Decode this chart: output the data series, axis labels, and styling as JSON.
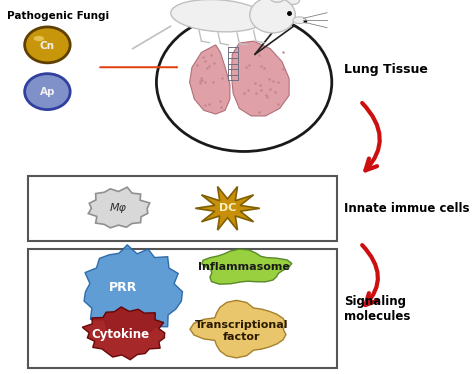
{
  "bg_color": "#ffffff",
  "figsize": [
    4.74,
    3.74
  ],
  "dpi": 100,
  "labels": {
    "pathogenic_fungi": "Pathogenic Fungi",
    "cn": "Cn",
    "ap": "Ap",
    "lung_tissue": "Lung Tissue",
    "innate_cells": "Innate immue cells",
    "macrophage": "Mφ",
    "dc": "DC",
    "signaling": "Signaling\nmolecules",
    "prr": "PRR",
    "inflammasome": "Inflammasome",
    "cytokine": "Cytokine",
    "transcriptional": "Transcriptional\nfactor"
  },
  "colors": {
    "cn_circle": "#c8960a",
    "ap_circle": "#8090c8",
    "ap_border": "#3040a0",
    "arrow_orange": "#e04010",
    "lung_circle_border": "#1a1a1a",
    "box_border": "#555555",
    "macrophage_fill": "#d8d8d8",
    "macrophage_edge": "#909090",
    "dc_fill": "#c8900a",
    "dc_edge": "#806000",
    "prr_fill": "#4a90d0",
    "prr_edge": "#2060a0",
    "inflammasome_fill": "#90cc30",
    "inflammasome_edge": "#508020",
    "cytokine_fill": "#a01515",
    "cytokine_edge": "#600000",
    "transcriptional_fill": "#e8c060",
    "transcriptional_edge": "#a07820",
    "red_arrow": "#cc1010",
    "black": "#000000",
    "white": "#ffffff",
    "lung_pink": "#e0a0a8",
    "lung_edge": "#b07078"
  }
}
